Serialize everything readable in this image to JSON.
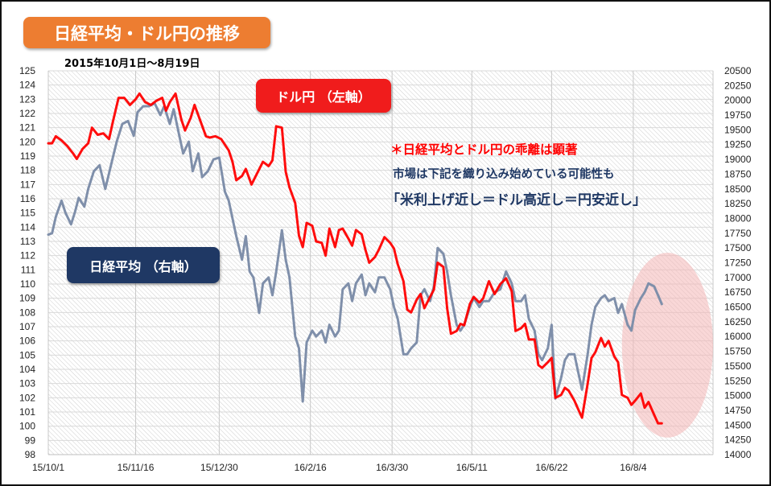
{
  "title": "日経平均・ドル円の推移",
  "subtitle": "2015年10月1日～8月19日",
  "labels": {
    "usdjpy": "ドル円 （左軸）",
    "nikkei": "日経平均 （右軸）"
  },
  "notes": {
    "line1": "＊日経平均とドル円の乖離は顕著",
    "line2": "市場は下記を織り込み始めている可能性も",
    "line3": "「米利上げ近し＝ドル高近し＝円安近し」"
  },
  "colors": {
    "usdjpy_line": "#ff0000",
    "nikkei_line": "#7f8faa",
    "title_badge": "#ed7d31",
    "usdjpy_badge": "#f01c1c",
    "nikkei_badge": "#1f3864",
    "note_red": "#ff0000",
    "note_navy": "#1f3864",
    "highlight": "#f4b6b6"
  },
  "chart_data": {
    "type": "line",
    "x_ticks": [
      "15/10/1",
      "15/11/16",
      "15/12/30",
      "16/2/16",
      "16/3/30",
      "16/5/11",
      "16/6/22",
      "16/8/4"
    ],
    "x_range": [
      "2015-10-01",
      "2016-09-15"
    ],
    "left_axis": {
      "min": 98,
      "max": 125,
      "step": 1
    },
    "right_axis": {
      "min": 14000,
      "max": 20500,
      "step": 250
    },
    "series": [
      {
        "name": "ドル円 （左軸）",
        "axis": "left",
        "points": [
          [
            "2015-10-01",
            119.9
          ],
          [
            "2015-10-03",
            119.9
          ],
          [
            "2015-10-05",
            120.4
          ],
          [
            "2015-10-08",
            120.1
          ],
          [
            "2015-10-11",
            119.7
          ],
          [
            "2015-10-14",
            119.2
          ],
          [
            "2015-10-16",
            118.8
          ],
          [
            "2015-10-19",
            119.5
          ],
          [
            "2015-10-22",
            119.9
          ],
          [
            "2015-10-24",
            121.0
          ],
          [
            "2015-10-27",
            120.5
          ],
          [
            "2015-10-30",
            120.6
          ],
          [
            "2015-11-02",
            120.2
          ],
          [
            "2015-11-04",
            121.4
          ],
          [
            "2015-11-07",
            123.1
          ],
          [
            "2015-11-10",
            123.1
          ],
          [
            "2015-11-13",
            122.6
          ],
          [
            "2015-11-16",
            123.0
          ],
          [
            "2015-11-18",
            123.4
          ],
          [
            "2015-11-21",
            122.8
          ],
          [
            "2015-11-24",
            122.6
          ],
          [
            "2015-11-27",
            122.9
          ],
          [
            "2015-11-30",
            123.1
          ],
          [
            "2015-12-02",
            122.2
          ],
          [
            "2015-12-04",
            122.8
          ],
          [
            "2015-12-07",
            123.4
          ],
          [
            "2015-12-10",
            121.6
          ],
          [
            "2015-12-12",
            120.8
          ],
          [
            "2015-12-15",
            121.7
          ],
          [
            "2015-12-17",
            122.6
          ],
          [
            "2015-12-20",
            121.5
          ],
          [
            "2015-12-23",
            120.4
          ],
          [
            "2015-12-25",
            120.3
          ],
          [
            "2015-12-28",
            120.4
          ],
          [
            "2015-12-31",
            120.2
          ],
          [
            "2016-01-04",
            119.4
          ],
          [
            "2016-01-06",
            118.6
          ],
          [
            "2016-01-08",
            117.3
          ],
          [
            "2016-01-11",
            117.6
          ],
          [
            "2016-01-13",
            118.1
          ],
          [
            "2016-01-16",
            117.0
          ],
          [
            "2016-01-19",
            117.8
          ],
          [
            "2016-01-22",
            118.6
          ],
          [
            "2016-01-25",
            118.3
          ],
          [
            "2016-01-27",
            118.7
          ],
          [
            "2016-01-29",
            121.1
          ],
          [
            "2016-02-01",
            121.0
          ],
          [
            "2016-02-03",
            117.9
          ],
          [
            "2016-02-05",
            116.8
          ],
          [
            "2016-02-08",
            115.7
          ],
          [
            "2016-02-10",
            113.4
          ],
          [
            "2016-02-12",
            112.6
          ],
          [
            "2016-02-14",
            114.3
          ],
          [
            "2016-02-17",
            114.1
          ],
          [
            "2016-02-19",
            113.0
          ],
          [
            "2016-02-22",
            112.9
          ],
          [
            "2016-02-24",
            112.0
          ],
          [
            "2016-02-26",
            113.9
          ],
          [
            "2016-02-29",
            112.6
          ],
          [
            "2016-03-02",
            113.8
          ],
          [
            "2016-03-04",
            113.9
          ],
          [
            "2016-03-07",
            113.2
          ],
          [
            "2016-03-09",
            112.7
          ],
          [
            "2016-03-11",
            113.8
          ],
          [
            "2016-03-14",
            113.5
          ],
          [
            "2016-03-16",
            112.4
          ],
          [
            "2016-03-18",
            111.5
          ],
          [
            "2016-03-21",
            111.9
          ],
          [
            "2016-03-23",
            112.4
          ],
          [
            "2016-03-26",
            113.3
          ],
          [
            "2016-03-29",
            112.9
          ],
          [
            "2016-03-31",
            112.5
          ],
          [
            "2016-04-02",
            111.4
          ],
          [
            "2016-04-05",
            110.2
          ],
          [
            "2016-04-07",
            108.2
          ],
          [
            "2016-04-09",
            108.0
          ],
          [
            "2016-04-12",
            108.9
          ],
          [
            "2016-04-14",
            109.3
          ],
          [
            "2016-04-16",
            108.3
          ],
          [
            "2016-04-19",
            109.1
          ],
          [
            "2016-04-21",
            109.6
          ],
          [
            "2016-04-23",
            111.5
          ],
          [
            "2016-04-26",
            111.2
          ],
          [
            "2016-04-28",
            108.3
          ],
          [
            "2016-04-30",
            106.5
          ],
          [
            "2016-05-03",
            106.7
          ],
          [
            "2016-05-05",
            107.2
          ],
          [
            "2016-05-07",
            107.1
          ],
          [
            "2016-05-10",
            108.6
          ],
          [
            "2016-05-12",
            109.1
          ],
          [
            "2016-05-15",
            108.7
          ],
          [
            "2016-05-17",
            109.0
          ],
          [
            "2016-05-20",
            110.2
          ],
          [
            "2016-05-23",
            109.3
          ],
          [
            "2016-05-26",
            110.0
          ],
          [
            "2016-05-29",
            110.4
          ],
          [
            "2016-06-01",
            109.5
          ],
          [
            "2016-06-03",
            106.7
          ],
          [
            "2016-06-06",
            106.9
          ],
          [
            "2016-06-08",
            107.2
          ],
          [
            "2016-06-10",
            106.1
          ],
          [
            "2016-06-13",
            106.1
          ],
          [
            "2016-06-15",
            104.3
          ],
          [
            "2016-06-17",
            104.1
          ],
          [
            "2016-06-20",
            104.5
          ],
          [
            "2016-06-22",
            104.8
          ],
          [
            "2016-06-24",
            102.0
          ],
          [
            "2016-06-27",
            102.2
          ],
          [
            "2016-06-29",
            102.7
          ],
          [
            "2016-07-01",
            102.5
          ],
          [
            "2016-07-04",
            101.8
          ],
          [
            "2016-07-06",
            101.2
          ],
          [
            "2016-07-08",
            100.6
          ],
          [
            "2016-07-11",
            103.0
          ],
          [
            "2016-07-13",
            104.8
          ],
          [
            "2016-07-15",
            105.2
          ],
          [
            "2016-07-18",
            106.2
          ],
          [
            "2016-07-20",
            105.6
          ],
          [
            "2016-07-22",
            106.0
          ],
          [
            "2016-07-25",
            104.9
          ],
          [
            "2016-07-27",
            104.5
          ],
          [
            "2016-07-29",
            102.2
          ],
          [
            "2016-08-01",
            102.0
          ],
          [
            "2016-08-03",
            101.5
          ],
          [
            "2016-08-05",
            101.8
          ],
          [
            "2016-08-08",
            102.3
          ],
          [
            "2016-08-10",
            101.3
          ],
          [
            "2016-08-12",
            101.7
          ],
          [
            "2016-08-15",
            100.8
          ],
          [
            "2016-08-17",
            100.2
          ],
          [
            "2016-08-19",
            100.2
          ]
        ]
      },
      {
        "name": "日経平均 （右軸）",
        "axis": "right",
        "points": [
          [
            "2015-10-01",
            17725
          ],
          [
            "2015-10-03",
            17750
          ],
          [
            "2015-10-05",
            18030
          ],
          [
            "2015-10-08",
            18300
          ],
          [
            "2015-10-10",
            18100
          ],
          [
            "2015-10-13",
            17900
          ],
          [
            "2015-10-15",
            18100
          ],
          [
            "2015-10-17",
            18350
          ],
          [
            "2015-10-20",
            18200
          ],
          [
            "2015-10-22",
            18500
          ],
          [
            "2015-10-25",
            18800
          ],
          [
            "2015-10-28",
            18900
          ],
          [
            "2015-10-31",
            18500
          ],
          [
            "2015-11-03",
            18900
          ],
          [
            "2015-11-06",
            19300
          ],
          [
            "2015-11-09",
            19600
          ],
          [
            "2015-11-12",
            19650
          ],
          [
            "2015-11-15",
            19400
          ],
          [
            "2015-11-17",
            19800
          ],
          [
            "2015-11-20",
            19900
          ],
          [
            "2015-11-23",
            19900
          ],
          [
            "2015-11-26",
            19950
          ],
          [
            "2015-11-29",
            19750
          ],
          [
            "2015-12-01",
            19900
          ],
          [
            "2015-12-04",
            19600
          ],
          [
            "2015-12-06",
            19850
          ],
          [
            "2015-12-09",
            19400
          ],
          [
            "2015-12-11",
            19100
          ],
          [
            "2015-12-14",
            19300
          ],
          [
            "2015-12-16",
            18800
          ],
          [
            "2015-12-19",
            19100
          ],
          [
            "2015-12-21",
            18700
          ],
          [
            "2015-12-24",
            18800
          ],
          [
            "2015-12-27",
            19000
          ],
          [
            "2015-12-30",
            19030
          ],
          [
            "2016-01-02",
            18450
          ],
          [
            "2016-01-04",
            18300
          ],
          [
            "2016-01-06",
            18000
          ],
          [
            "2016-01-08",
            17700
          ],
          [
            "2016-01-11",
            17300
          ],
          [
            "2016-01-13",
            17700
          ],
          [
            "2016-01-15",
            17100
          ],
          [
            "2016-01-17",
            17000
          ],
          [
            "2016-01-20",
            16400
          ],
          [
            "2016-01-22",
            16900
          ],
          [
            "2016-01-25",
            17000
          ],
          [
            "2016-01-27",
            16700
          ],
          [
            "2016-01-29",
            17100
          ],
          [
            "2016-02-01",
            17800
          ],
          [
            "2016-02-03",
            17300
          ],
          [
            "2016-02-05",
            17000
          ],
          [
            "2016-02-08",
            16000
          ],
          [
            "2016-02-10",
            15800
          ],
          [
            "2016-02-12",
            14900
          ],
          [
            "2016-02-14",
            15900
          ],
          [
            "2016-02-17",
            16100
          ],
          [
            "2016-02-19",
            16000
          ],
          [
            "2016-02-22",
            16100
          ],
          [
            "2016-02-24",
            15900
          ],
          [
            "2016-02-26",
            16200
          ],
          [
            "2016-02-29",
            16000
          ],
          [
            "2016-03-02",
            16100
          ],
          [
            "2016-03-04",
            16800
          ],
          [
            "2016-03-07",
            16900
          ],
          [
            "2016-03-09",
            16600
          ],
          [
            "2016-03-11",
            16900
          ],
          [
            "2016-03-14",
            17050
          ],
          [
            "2016-03-16",
            16700
          ],
          [
            "2016-03-18",
            16900
          ],
          [
            "2016-03-21",
            16750
          ],
          [
            "2016-03-23",
            17000
          ],
          [
            "2016-03-26",
            17000
          ],
          [
            "2016-03-29",
            16800
          ],
          [
            "2016-03-31",
            16500
          ],
          [
            "2016-04-02",
            16300
          ],
          [
            "2016-04-05",
            15700
          ],
          [
            "2016-04-07",
            15700
          ],
          [
            "2016-04-09",
            15800
          ],
          [
            "2016-04-12",
            15900
          ],
          [
            "2016-04-14",
            16700
          ],
          [
            "2016-04-16",
            16800
          ],
          [
            "2016-04-19",
            16600
          ],
          [
            "2016-04-21",
            16850
          ],
          [
            "2016-04-23",
            17500
          ],
          [
            "2016-04-26",
            17400
          ],
          [
            "2016-04-28",
            17100
          ],
          [
            "2016-04-30",
            16700
          ],
          [
            "2016-05-03",
            16200
          ],
          [
            "2016-05-05",
            16100
          ],
          [
            "2016-05-07",
            16200
          ],
          [
            "2016-05-10",
            16500
          ],
          [
            "2016-05-12",
            16650
          ],
          [
            "2016-05-15",
            16500
          ],
          [
            "2016-05-17",
            16600
          ],
          [
            "2016-05-20",
            16600
          ],
          [
            "2016-05-23",
            16750
          ],
          [
            "2016-05-26",
            16800
          ],
          [
            "2016-05-29",
            17100
          ],
          [
            "2016-06-01",
            16900
          ],
          [
            "2016-06-03",
            16600
          ],
          [
            "2016-06-06",
            16600
          ],
          [
            "2016-06-08",
            16700
          ],
          [
            "2016-06-10",
            16300
          ],
          [
            "2016-06-13",
            16100
          ],
          [
            "2016-06-15",
            15700
          ],
          [
            "2016-06-17",
            15600
          ],
          [
            "2016-06-20",
            15800
          ],
          [
            "2016-06-22",
            16200
          ],
          [
            "2016-06-24",
            14950
          ],
          [
            "2016-06-27",
            15300
          ],
          [
            "2016-06-29",
            15600
          ],
          [
            "2016-07-01",
            15700
          ],
          [
            "2016-07-04",
            15700
          ],
          [
            "2016-07-06",
            15400
          ],
          [
            "2016-07-08",
            15100
          ],
          [
            "2016-07-11",
            15700
          ],
          [
            "2016-07-13",
            16200
          ],
          [
            "2016-07-15",
            16500
          ],
          [
            "2016-07-18",
            16650
          ],
          [
            "2016-07-20",
            16700
          ],
          [
            "2016-07-22",
            16600
          ],
          [
            "2016-07-25",
            16650
          ],
          [
            "2016-07-27",
            16400
          ],
          [
            "2016-07-29",
            16550
          ],
          [
            "2016-08-01",
            16200
          ],
          [
            "2016-08-03",
            16100
          ],
          [
            "2016-08-05",
            16450
          ],
          [
            "2016-08-08",
            16650
          ],
          [
            "2016-08-10",
            16750
          ],
          [
            "2016-08-12",
            16900
          ],
          [
            "2016-08-15",
            16850
          ],
          [
            "2016-08-17",
            16700
          ],
          [
            "2016-08-19",
            16550
          ]
        ]
      }
    ],
    "highlight": {
      "start": "2016-07-29",
      "end": "2016-09-15",
      "left_min": 99.2,
      "left_max": 112.2
    },
    "grid": true,
    "legend": "none"
  }
}
